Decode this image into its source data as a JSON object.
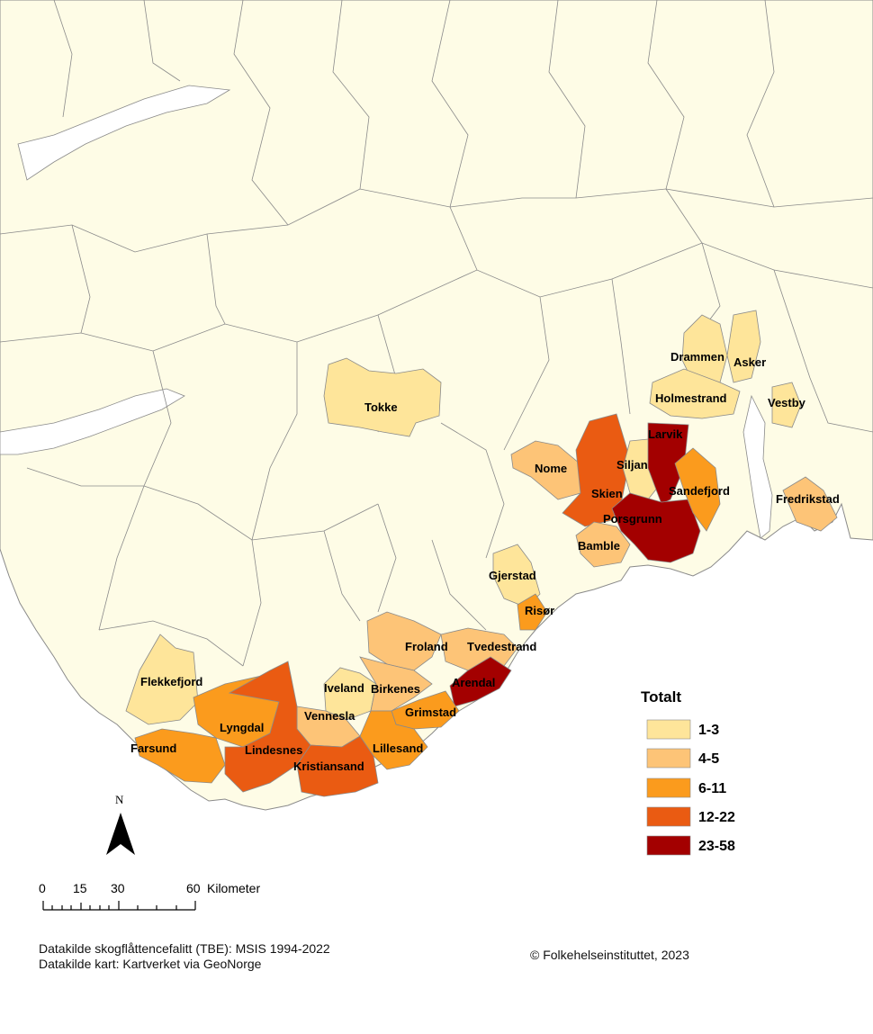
{
  "colors": {
    "land": "#fefce6",
    "sea": "#ffffff",
    "border": "#8a8a8a",
    "class_1": "#fee59a",
    "class_2": "#fdc477",
    "class_3": "#fb9b1d",
    "class_4": "#ea5b12",
    "class_5": "#a30000"
  },
  "municipalities": [
    {
      "name": "Drammen",
      "class": 1
    },
    {
      "name": "Asker",
      "class": 1
    },
    {
      "name": "Holmestrand",
      "class": 1
    },
    {
      "name": "Vestby",
      "class": 1
    },
    {
      "name": "Tokke",
      "class": 1
    },
    {
      "name": "Larvik",
      "class": 5
    },
    {
      "name": "Siljan",
      "class": 1
    },
    {
      "name": "Nome",
      "class": 2
    },
    {
      "name": "Skien",
      "class": 4
    },
    {
      "name": "Sandefjord",
      "class": 3
    },
    {
      "name": "Fredrikstad",
      "class": 2
    },
    {
      "name": "Porsgrunn",
      "class": 5
    },
    {
      "name": "Bamble",
      "class": 2
    },
    {
      "name": "Gjerstad",
      "class": 1
    },
    {
      "name": "Risør",
      "class": 3
    },
    {
      "name": "Froland",
      "class": 2
    },
    {
      "name": "Tvedestrand",
      "class": 2
    },
    {
      "name": "Arendal",
      "class": 5
    },
    {
      "name": "Flekkefjord",
      "class": 1
    },
    {
      "name": "Iveland",
      "class": 1
    },
    {
      "name": "Birkenes",
      "class": 2
    },
    {
      "name": "Vennesla",
      "class": 2
    },
    {
      "name": "Grimstad",
      "class": 3
    },
    {
      "name": "Lyngdal",
      "class": 3
    },
    {
      "name": "Farsund",
      "class": 3
    },
    {
      "name": "Lindesnes",
      "class": 4
    },
    {
      "name": "Lillesand",
      "class": 3
    },
    {
      "name": "Kristiansand",
      "class": 4
    }
  ],
  "legend": {
    "title": "Totalt",
    "items": [
      {
        "label": "1-3",
        "class": 1
      },
      {
        "label": "4-5",
        "class": 2
      },
      {
        "label": "6-11",
        "class": 3
      },
      {
        "label": "12-22",
        "class": 4
      },
      {
        "label": "23-58",
        "class": 5
      }
    ]
  },
  "north_arrow": {
    "label": "N"
  },
  "scale_bar": {
    "ticks": [
      "0",
      "15",
      "30",
      "60"
    ],
    "unit": "Kilometer"
  },
  "sources": {
    "line1": "Datakilde skogflåttencefalitt (TBE):  MSIS 1994-2022",
    "line2": "Datakilde kart: Kartverket via GeoNorge"
  },
  "copyright": "© Folkehelseinstituttet, 2023"
}
